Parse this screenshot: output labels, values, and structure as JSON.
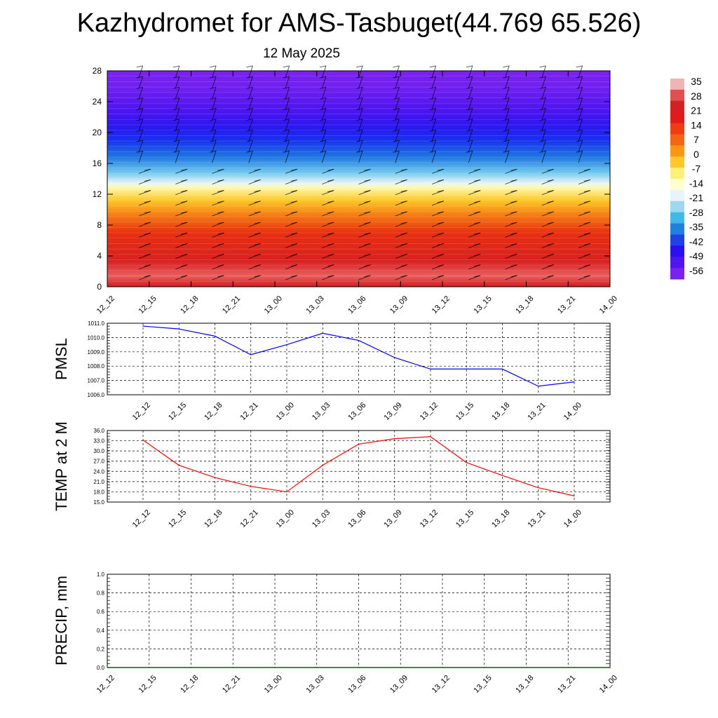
{
  "title": "Kazhydromet for AMS-Tasbuget(44.769 65.526)",
  "subtitle": "12 May 2025",
  "colors": {
    "pmsl_line": "#0000ff",
    "temp_line": "#ff0000",
    "precip_line": "#006400",
    "colorbar": [
      "#f0b4b4",
      "#e05050",
      "#d42020",
      "#e31a1c",
      "#f03c14",
      "#f56414",
      "#fa9614",
      "#fdc828",
      "#fff07a",
      "#ffffd0",
      "#e8f4f8",
      "#9ed8f0",
      "#40b8e8",
      "#2080e0",
      "#2040e8",
      "#2a10f0",
      "#5014f0",
      "#7a20f0"
    ]
  },
  "chart_data": [
    {
      "type": "heatmap",
      "name": "vertical-profile",
      "y_ticks": [
        "0",
        "4",
        "8",
        "12",
        "16",
        "20",
        "24",
        "28"
      ],
      "x_ticks": [
        "12_12",
        "12_15",
        "12_18",
        "12_21",
        "13_00",
        "13_03",
        "13_06",
        "13_09",
        "13_12",
        "13_15",
        "13_18",
        "13_21",
        "14_00"
      ],
      "ylim": [
        0,
        28
      ],
      "colorbar_labels": [
        "35",
        "28",
        "21",
        "14",
        "7",
        "0",
        "-7",
        "-14",
        "-21",
        "-28",
        "-35",
        "-42",
        "-49",
        "-56"
      ],
      "wind_barbs": true
    },
    {
      "type": "line",
      "ylabel": "PMSL",
      "x_ticks": [
        "12_12",
        "12_15",
        "12_18",
        "12_21",
        "13_00",
        "13_03",
        "13_06",
        "13_09",
        "13_12",
        "13_15",
        "13_18",
        "13_21",
        "14_00"
      ],
      "y_ticks": [
        "1006.0",
        "1007.0",
        "1008.0",
        "1009.0",
        "1010.0",
        "1011.0"
      ],
      "ylim": [
        1006.0,
        1011.0
      ],
      "values": [
        1010.8,
        1010.6,
        1010.1,
        1008.8,
        1009.5,
        1010.3,
        1009.8,
        1008.6,
        1007.8,
        1007.8,
        1007.8,
        1006.6,
        1006.9
      ],
      "grid": true
    },
    {
      "type": "line",
      "ylabel": "TEMP at 2 M",
      "x_ticks": [
        "12_12",
        "12_15",
        "12_18",
        "12_21",
        "13_00",
        "13_03",
        "13_06",
        "13_09",
        "13_12",
        "13_15",
        "13_18",
        "13_21",
        "14_00"
      ],
      "y_ticks": [
        "15.0",
        "18.0",
        "21.0",
        "24.0",
        "27.0",
        "30.0",
        "33.0",
        "36.0"
      ],
      "ylim": [
        15.0,
        36.0
      ],
      "values": [
        33.2,
        25.8,
        22.2,
        19.6,
        18.0,
        25.8,
        32.0,
        33.6,
        34.2,
        26.6,
        22.8,
        19.2,
        16.8
      ],
      "grid": true
    },
    {
      "type": "line",
      "ylabel": "PRECIP, mm",
      "x_ticks": [
        "12_12",
        "12_15",
        "12_18",
        "12_21",
        "13_00",
        "13_03",
        "13_06",
        "13_09",
        "13_12",
        "13_15",
        "13_18",
        "13_21",
        "14_00"
      ],
      "y_ticks": [
        "0.0",
        "0.2",
        "0.4",
        "0.6",
        "0.8",
        "1.0"
      ],
      "ylim": [
        0.0,
        1.0
      ],
      "values": [
        0,
        0,
        0,
        0,
        0,
        0,
        0,
        0,
        0,
        0,
        0,
        0,
        0
      ],
      "grid": true
    }
  ]
}
